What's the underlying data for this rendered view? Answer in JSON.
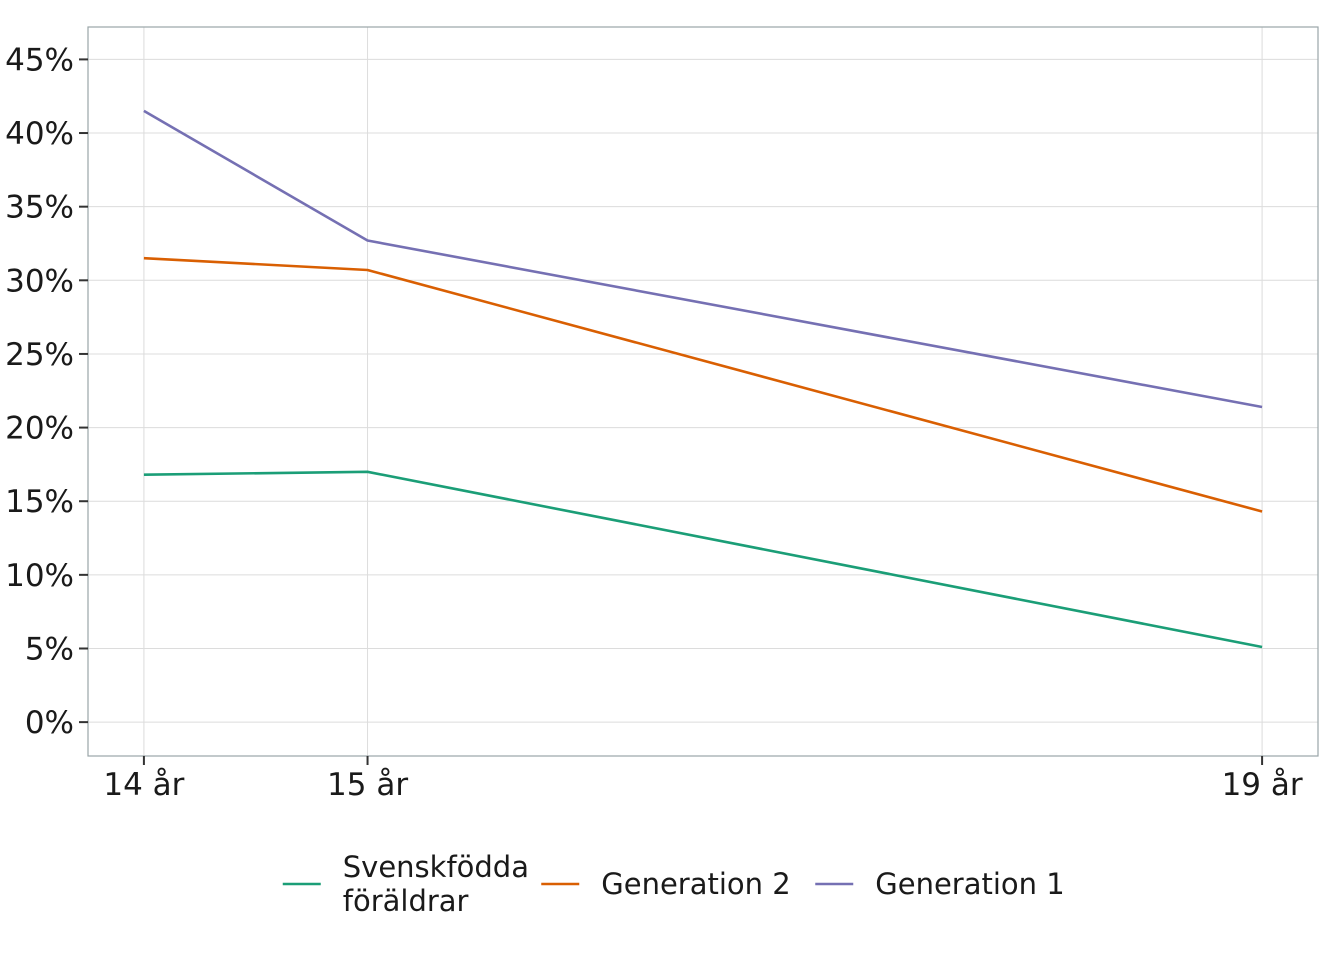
{
  "chart_data": {
    "type": "line",
    "title": "",
    "xlabel": "",
    "ylabel": "",
    "x": [
      14,
      15,
      19
    ],
    "categories": [
      "14 år",
      "15 år",
      "19 år"
    ],
    "xlim": [
      13.75,
      19.25
    ],
    "ylim": [
      -2.3,
      47.2
    ],
    "yticks": [
      0,
      5,
      10,
      15,
      20,
      25,
      30,
      35,
      40,
      45
    ],
    "ytick_labels": [
      "0%",
      "5%",
      "10%",
      "15%",
      "20%",
      "25%",
      "30%",
      "35%",
      "40%",
      "45%"
    ],
    "grid": true,
    "legend_position": "bottom",
    "series": [
      {
        "name": "Svenskfödda föräldrar",
        "name_lines": [
          "Svenskfödda",
          "föräldrar"
        ],
        "color": "#1b9e77",
        "values": [
          16.8,
          17.0,
          5.1
        ]
      },
      {
        "name": "Generation 2",
        "name_lines": [
          "Generation 2"
        ],
        "color": "#d95f02",
        "values": [
          31.5,
          30.7,
          14.3
        ]
      },
      {
        "name": "Generation 1",
        "name_lines": [
          "Generation 1"
        ],
        "color": "#7570b3",
        "values": [
          41.5,
          32.7,
          21.4
        ]
      }
    ]
  }
}
